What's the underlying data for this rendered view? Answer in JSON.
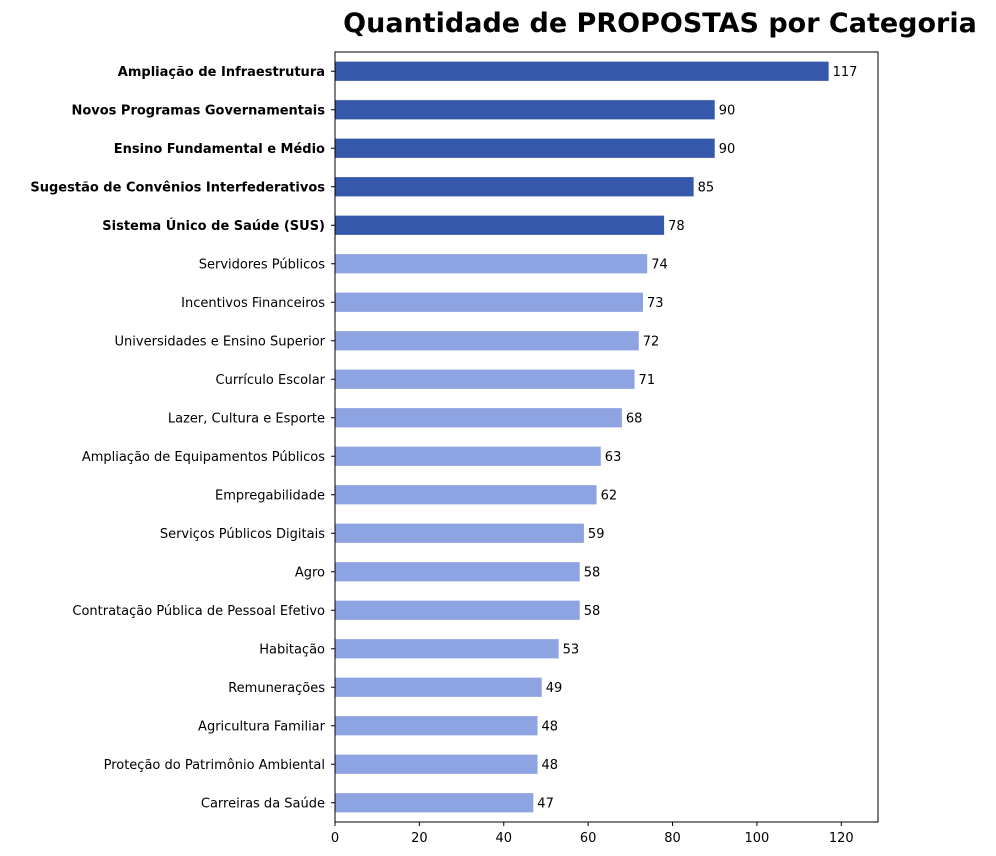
{
  "chart_data": {
    "type": "bar",
    "orientation": "horizontal",
    "title": "Quantidade de PROPOSTAS por Categoria",
    "xlabel": "",
    "ylabel": "",
    "xlim": [
      0,
      128.7
    ],
    "xticks": [
      0,
      20,
      40,
      60,
      80,
      100,
      120
    ],
    "grid": false,
    "categories": [
      "Ampliação de Infraestrutura",
      "Novos Programas Governamentais",
      "Ensino Fundamental e Médio",
      "Sugestão de Convênios Interfederativos",
      "Sistema Único de Saúde (SUS)",
      "Servidores Públicos",
      "Incentivos Financeiros",
      "Universidades e Ensino Superior",
      "Currículo Escolar",
      "Lazer, Cultura e Esporte",
      "Ampliação de Equipamentos Públicos",
      "Empregabilidade",
      "Serviços Públicos Digitais",
      "Agro",
      "Contratação Pública de Pessoal Efetivo",
      "Habitação",
      "Remunerações",
      "Agricultura Familiar",
      "Proteção do Patrimônio Ambiental",
      "Carreiras da Saúde"
    ],
    "values": [
      117,
      90,
      90,
      85,
      78,
      74,
      73,
      72,
      71,
      68,
      63,
      62,
      59,
      58,
      58,
      53,
      49,
      48,
      48,
      47
    ],
    "highlight_top_n": 5,
    "colors": {
      "highlight": "#3558ab",
      "normal": "#8ea3e2",
      "axis": "#000000"
    }
  }
}
